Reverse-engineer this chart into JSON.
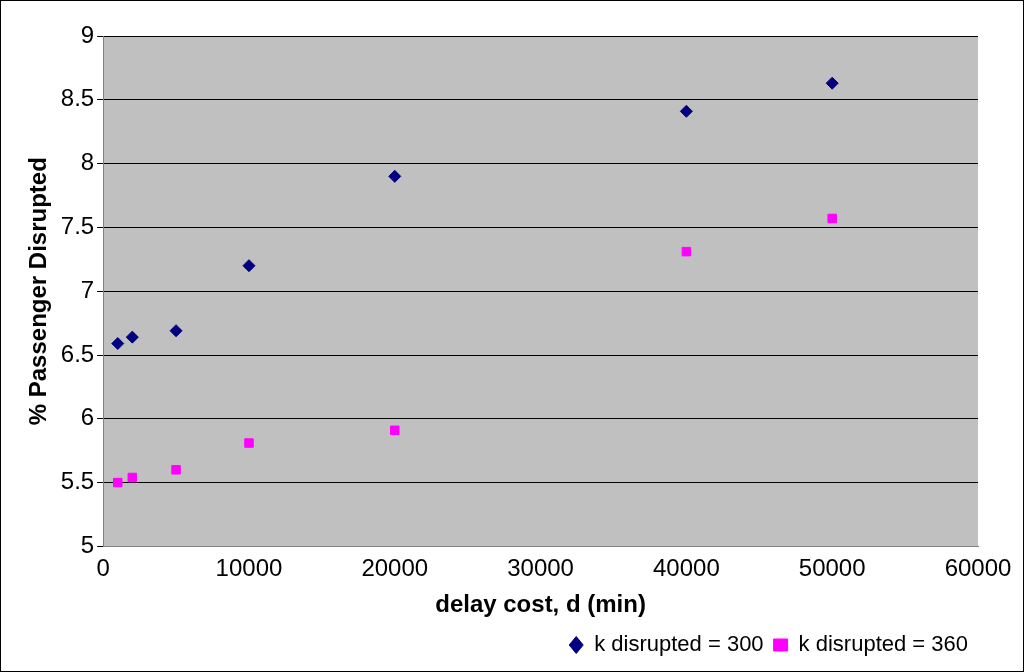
{
  "chart_data": {
    "type": "scatter",
    "xlabel": "delay cost, d (min)",
    "ylabel": "% Passenger Disrupted",
    "x": [
      1000,
      2000,
      5000,
      10000,
      20000,
      40000,
      50000
    ],
    "series": [
      {
        "name": "k disrupted = 300",
        "color": "#000080",
        "marker": "diamond",
        "values": [
          6.59,
          6.64,
          6.69,
          7.2,
          7.9,
          8.41,
          8.63
        ]
      },
      {
        "name": "k disrupted = 360",
        "color": "#ff00ff",
        "marker": "square",
        "values": [
          5.5,
          5.54,
          5.6,
          5.81,
          5.91,
          7.31,
          7.57
        ]
      }
    ],
    "xlim": [
      0,
      60000
    ],
    "xticks": [
      0,
      10000,
      20000,
      30000,
      40000,
      50000,
      60000
    ],
    "ylim": [
      5,
      9
    ],
    "yticks": [
      5,
      5.5,
      6,
      6.5,
      7,
      7.5,
      8,
      8.5,
      9
    ],
    "grid": "y",
    "legend": "bottom right"
  }
}
